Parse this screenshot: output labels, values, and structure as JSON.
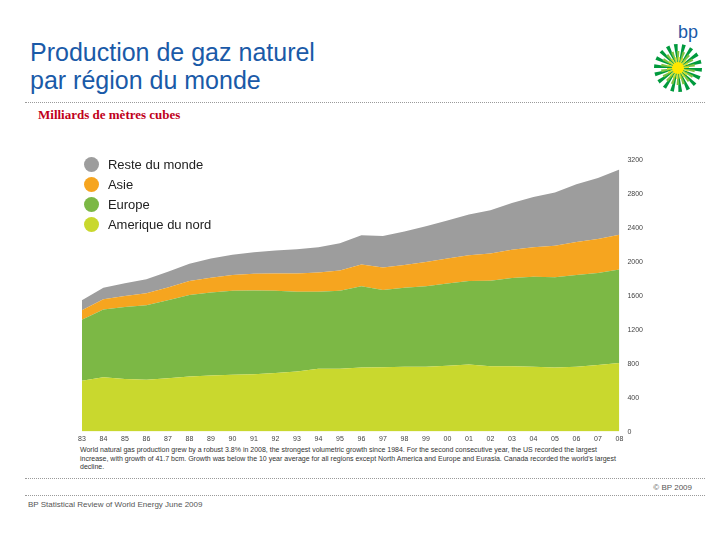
{
  "page": {
    "logo": "bp",
    "footnote": "World natural gas production grew by a robust 3.8% in 2008, the strongest volumetric growth since 1984. For the second consecutive year, the US recorded the largest increase, with growth of 41.7 bcm. Growth was below the 10 year average for all regions except North America and Europe and Eurasia. Canada recorded the world's largest decline.",
    "copyright": "© BP 2009",
    "source": "BP Statistical Review of World Energy June 2009"
  },
  "chart_data": {
    "type": "area",
    "title": [
      "Production de gaz naturel",
      "par région du monde"
    ],
    "subtitle": "Milliards de mètres cubes",
    "categories": [
      "83",
      "84",
      "85",
      "86",
      "87",
      "88",
      "89",
      "90",
      "91",
      "92",
      "93",
      "94",
      "95",
      "96",
      "97",
      "98",
      "99",
      "00",
      "01",
      "02",
      "03",
      "04",
      "05",
      "06",
      "07",
      "08"
    ],
    "stacked": true,
    "grid": false,
    "legend": "upper left",
    "ylim": [
      0,
      3200
    ],
    "yticks": [
      0,
      400,
      800,
      1200,
      1600,
      2000,
      2400,
      2800,
      3200
    ],
    "series": [
      {
        "name": "Amerique du nord",
        "color": "#c9d82e",
        "values": [
          600,
          640,
          620,
          610,
          630,
          650,
          660,
          670,
          675,
          690,
          710,
          740,
          740,
          755,
          760,
          765,
          765,
          775,
          790,
          770,
          770,
          765,
          755,
          765,
          785,
          810
        ]
      },
      {
        "name": "Europe",
        "color": "#7cb845",
        "values": [
          720,
          800,
          850,
          880,
          920,
          960,
          980,
          990,
          990,
          970,
          940,
          910,
          920,
          960,
          910,
          930,
          950,
          970,
          985,
          1010,
          1040,
          1060,
          1065,
          1080,
          1085,
          1100
        ]
      },
      {
        "name": "Asie",
        "color": "#f6a51f",
        "values": [
          110,
          120,
          130,
          140,
          150,
          165,
          175,
          185,
          195,
          205,
          215,
          225,
          240,
          255,
          265,
          270,
          285,
          295,
          305,
          320,
          335,
          350,
          370,
          390,
          400,
          410
        ]
      },
      {
        "name": "Reste du monde",
        "color": "#9d9d9d",
        "values": [
          120,
          135,
          150,
          165,
          185,
          205,
          225,
          240,
          255,
          270,
          285,
          300,
          320,
          345,
          370,
          395,
          420,
          450,
          480,
          510,
          550,
          590,
          630,
          680,
          720,
          770
        ]
      }
    ]
  }
}
